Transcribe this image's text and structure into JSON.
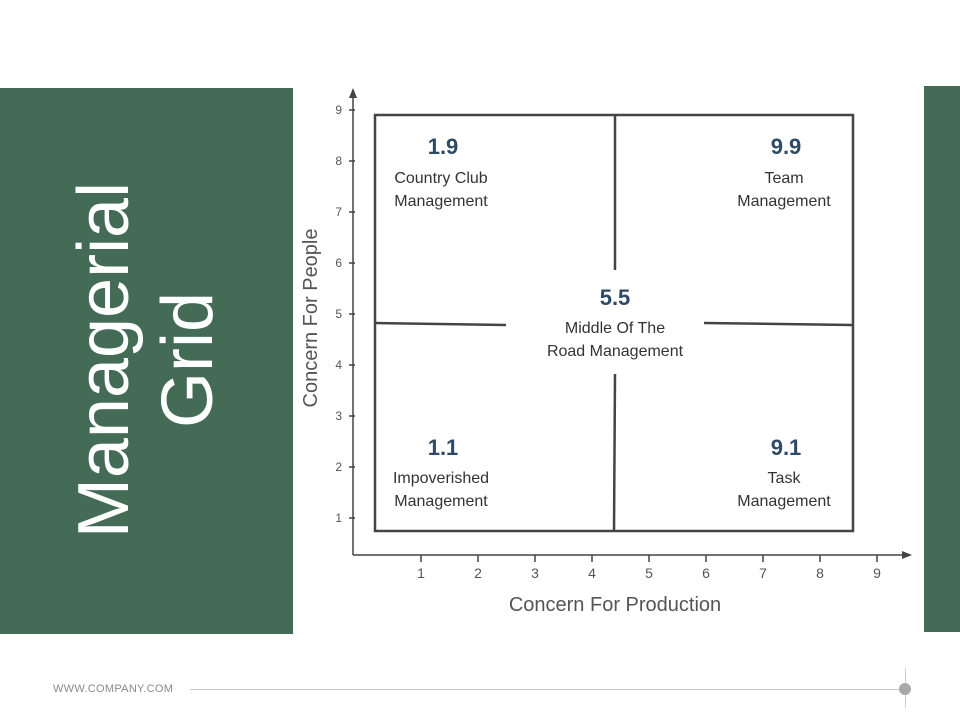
{
  "title": {
    "line1": "Managerial",
    "line2": "Grid"
  },
  "footer": {
    "url": "WWW.COMPANY.COM"
  },
  "colors": {
    "accent_green": "#436b55",
    "number_blue": "#2e4a66",
    "line": "#444444"
  },
  "chart_data": {
    "type": "quadrant-grid",
    "xlabel": "Concern For Production",
    "ylabel": "Concern For People",
    "xticks": [
      "1",
      "2",
      "3",
      "4",
      "5",
      "6",
      "7",
      "8",
      "9"
    ],
    "yticks": [
      "1",
      "2",
      "3",
      "4",
      "5",
      "6",
      "7",
      "8",
      "9"
    ],
    "quadrants": [
      {
        "id": "country-club",
        "score": "1.9",
        "line1": "Country Club",
        "line2": "Management",
        "position": "top-left"
      },
      {
        "id": "team",
        "score": "9.9",
        "line1": "Team",
        "line2": "Management",
        "position": "top-right"
      },
      {
        "id": "impoverished",
        "score": "1.1",
        "line1": "Impoverished",
        "line2": "Management",
        "position": "bottom-left"
      },
      {
        "id": "task",
        "score": "9.1",
        "line1": "Task",
        "line2": "Management",
        "position": "bottom-right"
      }
    ],
    "center": {
      "score": "5.5",
      "line1": "Middle Of The",
      "line2": "Road Management"
    }
  }
}
